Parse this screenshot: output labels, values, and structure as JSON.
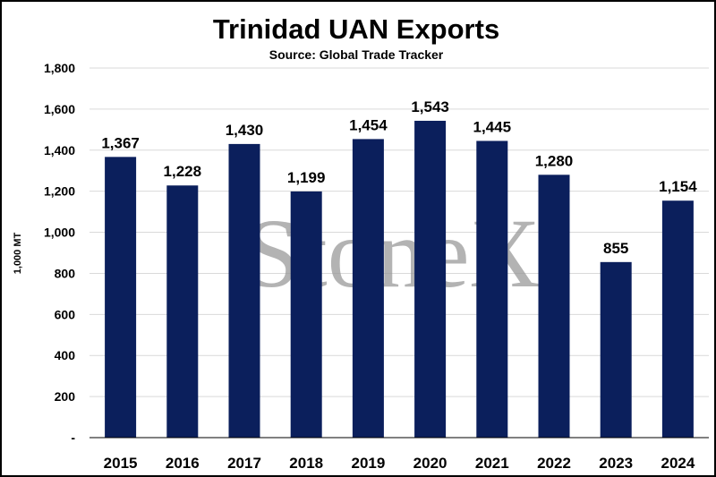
{
  "chart_data": {
    "type": "bar",
    "title": "Trinidad UAN Exports",
    "subtitle": "Source: Global Trade Tracker",
    "ylabel": "1,000 MT",
    "xlabel": "",
    "categories": [
      "2015",
      "2016",
      "2017",
      "2018",
      "2019",
      "2020",
      "2021",
      "2022",
      "2023",
      "2024"
    ],
    "values": [
      1367,
      1228,
      1430,
      1199,
      1454,
      1543,
      1445,
      1280,
      855,
      1154
    ],
    "data_labels": [
      "1,367",
      "1,228",
      "1,430",
      "1,199",
      "1,454",
      "1,543",
      "1,445",
      "1,280",
      "855",
      "1,154"
    ],
    "ylim": [
      0,
      1800
    ],
    "yticks": [
      0,
      200,
      400,
      600,
      800,
      1000,
      1200,
      1400,
      1600,
      1800
    ],
    "ytick_labels": [
      "-",
      "200",
      "400",
      "600",
      "800",
      "1,000",
      "1,200",
      "1,400",
      "1,600",
      "1,800"
    ],
    "grid": true,
    "bar_color": "#0b1f5c",
    "watermark": "StoneX"
  }
}
